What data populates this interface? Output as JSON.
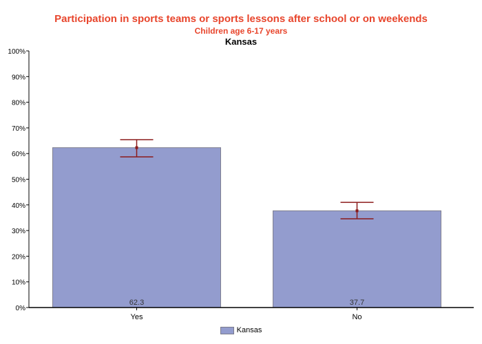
{
  "chart_data": {
    "type": "bar",
    "title": "Participation in sports teams or sports lessons after school or on weekends",
    "subtitle": "Children age 6-17 years",
    "subtitle2": "Kansas",
    "categories": [
      "Yes",
      "No"
    ],
    "series": [
      {
        "name": "Kansas",
        "color": "#939cce",
        "values": [
          62.3,
          37.7
        ],
        "error_low": [
          58.7,
          34.6
        ],
        "error_high": [
          65.4,
          41.0
        ]
      }
    ],
    "value_labels": [
      "62.3",
      "37.7"
    ],
    "xlabel": "",
    "ylabel": "",
    "ylim": [
      0,
      100
    ],
    "yticks": [
      "0%",
      "10%",
      "20%",
      "30%",
      "40%",
      "50%",
      "60%",
      "70%",
      "80%",
      "90%",
      "100%"
    ],
    "grid": false,
    "legend_position": "bottom",
    "error_bar_color": "#8b1a1a"
  },
  "legend": {
    "label": "Kansas"
  }
}
